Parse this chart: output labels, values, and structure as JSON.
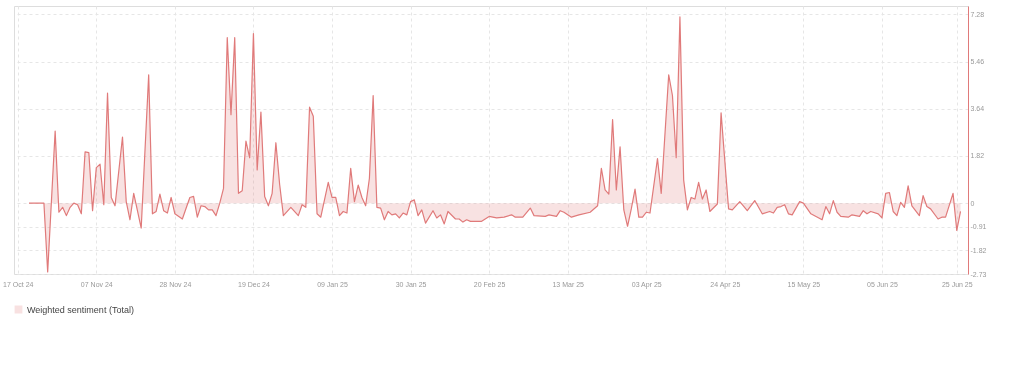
{
  "chart_data": {
    "type": "area",
    "x": [
      "2024-10-20",
      "2024-10-24",
      "2024-10-25",
      "2024-10-27",
      "2024-10-28",
      "2024-10-29",
      "2024-10-30",
      "2024-10-31",
      "2024-11-01",
      "2024-11-02",
      "2024-11-03",
      "2024-11-04",
      "2024-11-05",
      "2024-11-06",
      "2024-11-07",
      "2024-11-08",
      "2024-11-09",
      "2024-11-10",
      "2024-11-11",
      "2024-11-12",
      "2024-11-14",
      "2024-11-15",
      "2024-11-16",
      "2024-11-17",
      "2024-11-19",
      "2024-11-21",
      "2024-11-22",
      "2024-11-23",
      "2024-11-24",
      "2024-11-25",
      "2024-11-26",
      "2024-11-27",
      "2024-11-28",
      "2024-11-30",
      "2024-12-02",
      "2024-12-03",
      "2024-12-04",
      "2024-12-05",
      "2024-12-06",
      "2024-12-07",
      "2024-12-08",
      "2024-12-09",
      "2024-12-10",
      "2024-12-11",
      "2024-12-12",
      "2024-12-13",
      "2024-12-14",
      "2024-12-15",
      "2024-12-16",
      "2024-12-17",
      "2024-12-18",
      "2024-12-19",
      "2024-12-20",
      "2024-12-21",
      "2024-12-22",
      "2024-12-23",
      "2024-12-24",
      "2024-12-25",
      "2024-12-26",
      "2024-12-27",
      "2024-12-29",
      "2024-12-31",
      "2025-01-01",
      "2025-01-02",
      "2025-01-03",
      "2025-01-04",
      "2025-01-05",
      "2025-01-06",
      "2025-01-08",
      "2025-01-09",
      "2025-01-10",
      "2025-01-11",
      "2025-01-12",
      "2025-01-13",
      "2025-01-14",
      "2025-01-15",
      "2025-01-16",
      "2025-01-17",
      "2025-01-18",
      "2025-01-19",
      "2025-01-20",
      "2025-01-21",
      "2025-01-22",
      "2025-01-23",
      "2025-01-24",
      "2025-01-25",
      "2025-01-26",
      "2025-01-27",
      "2025-01-28",
      "2025-01-29",
      "2025-01-30",
      "2025-01-31",
      "2025-02-01",
      "2025-02-02",
      "2025-02-03",
      "2025-02-05",
      "2025-02-06",
      "2025-02-07",
      "2025-02-08",
      "2025-02-09",
      "2025-02-11",
      "2025-02-12",
      "2025-02-13",
      "2025-02-14",
      "2025-02-15",
      "2025-02-18",
      "2025-02-20",
      "2025-02-22",
      "2025-02-24",
      "2025-02-26",
      "2025-02-27",
      "2025-03-01",
      "2025-03-03",
      "2025-03-04",
      "2025-03-07",
      "2025-03-08",
      "2025-03-10",
      "2025-03-11",
      "2025-03-12",
      "2025-03-14",
      "2025-03-16",
      "2025-03-19",
      "2025-03-21",
      "2025-03-22",
      "2025-03-23",
      "2025-03-24",
      "2025-03-25",
      "2025-03-26",
      "2025-03-27",
      "2025-03-28",
      "2025-03-29",
      "2025-03-30",
      "2025-03-31",
      "2025-04-01",
      "2025-04-02",
      "2025-04-03",
      "2025-04-04",
      "2025-04-06",
      "2025-04-07",
      "2025-04-09",
      "2025-04-10",
      "2025-04-11",
      "2025-04-12",
      "2025-04-13",
      "2025-04-14",
      "2025-04-15",
      "2025-04-16",
      "2025-04-17",
      "2025-04-18",
      "2025-04-19",
      "2025-04-20",
      "2025-04-22",
      "2025-04-23",
      "2025-04-25",
      "2025-04-26",
      "2025-04-28",
      "2025-04-30",
      "2025-05-02",
      "2025-05-04",
      "2025-05-06",
      "2025-05-07",
      "2025-05-08",
      "2025-05-09",
      "2025-05-10",
      "2025-05-11",
      "2025-05-12",
      "2025-05-14",
      "2025-05-15",
      "2025-05-17",
      "2025-05-20",
      "2025-05-21",
      "2025-05-22",
      "2025-05-23",
      "2025-05-24",
      "2025-05-25",
      "2025-05-27",
      "2025-05-28",
      "2025-05-30",
      "2025-05-31",
      "2025-06-01",
      "2025-06-02",
      "2025-06-04",
      "2025-06-05",
      "2025-06-06",
      "2025-06-07",
      "2025-06-08",
      "2025-06-09",
      "2025-06-10",
      "2025-06-11",
      "2025-06-12",
      "2025-06-13",
      "2025-06-15",
      "2025-06-16",
      "2025-06-17",
      "2025-06-18",
      "2025-06-20",
      "2025-06-21",
      "2025-06-22",
      "2025-06-24",
      "2025-06-25",
      "2025-06-26"
    ],
    "series": [
      {
        "name": "Weighted sentiment (Total)",
        "color": "#e07a7a",
        "values": [
          0,
          0,
          -2.65,
          2.78,
          -0.35,
          -0.16,
          -0.48,
          -0.16,
          0,
          -0.06,
          -0.41,
          1.98,
          1.95,
          -0.29,
          1.37,
          1.5,
          -0.06,
          4.24,
          0.22,
          -0.1,
          2.55,
          0.06,
          -0.64,
          0.38,
          -0.96,
          4.95,
          -0.41,
          -0.32,
          0.35,
          -0.29,
          -0.38,
          0.22,
          -0.41,
          -0.61,
          0.22,
          0.26,
          -0.54,
          -0.1,
          -0.13,
          -0.26,
          -0.26,
          -0.48,
          0,
          0.57,
          6.38,
          3.41,
          6.38,
          0.38,
          0.48,
          2.39,
          1.75,
          6.54,
          1.28,
          3.51,
          0.26,
          -0.1,
          0.38,
          2.33,
          0.73,
          -0.48,
          -0.16,
          -0.48,
          -0.06,
          -0.16,
          3.7,
          3.35,
          -0.41,
          -0.54,
          0.8,
          0.22,
          0.22,
          -0.48,
          -0.32,
          -0.38,
          1.34,
          0.06,
          0.7,
          0.22,
          -0.1,
          0.96,
          4.15,
          -0.16,
          -0.19,
          -0.64,
          -0.32,
          -0.45,
          -0.41,
          -0.57,
          -0.38,
          -0.45,
          0.06,
          0.13,
          -0.48,
          -0.26,
          -0.77,
          -0.29,
          -0.57,
          -0.45,
          -0.8,
          -0.32,
          -0.61,
          -0.61,
          -0.73,
          -0.64,
          -0.7,
          -0.7,
          -0.51,
          -0.57,
          -0.54,
          -0.45,
          -0.54,
          -0.54,
          -0.19,
          -0.48,
          -0.51,
          -0.45,
          -0.51,
          -0.29,
          -0.35,
          -0.54,
          -0.45,
          -0.35,
          -0.1,
          1.34,
          0.51,
          0.35,
          3.22,
          0.51,
          2.17,
          -0.26,
          -0.89,
          -0.22,
          0.54,
          -0.54,
          -0.54,
          -0.35,
          -0.38,
          1.72,
          0.38,
          4.95,
          4.15,
          1.75,
          7.18,
          0.89,
          -0.26,
          0.22,
          0.16,
          0.8,
          0.16,
          0.51,
          -0.32,
          -0.03,
          3.48,
          -0.22,
          -0.26,
          0.06,
          -0.29,
          0.1,
          -0.41,
          -0.32,
          -0.38,
          -0.16,
          -0.13,
          -0.06,
          -0.41,
          -0.45,
          0.06,
          0,
          -0.41,
          -0.64,
          -0.13,
          -0.41,
          0.1,
          -0.35,
          -0.51,
          -0.54,
          -0.45,
          -0.51,
          -0.29,
          -0.41,
          -0.32,
          -0.41,
          -0.57,
          0.38,
          0.41,
          -0.32,
          -0.48,
          0.03,
          -0.16,
          0.67,
          -0.1,
          -0.48,
          0.29,
          -0.13,
          -0.22,
          -0.61,
          -0.54,
          -0.54,
          0.38,
          -1.05,
          -0.32
        ]
      }
    ],
    "xlim": [
      "2024-10-16",
      "2025-06-28"
    ],
    "xticks": [
      {
        "value": "2024-10-17",
        "label": "17 Oct 24"
      },
      {
        "value": "2024-11-07",
        "label": "07 Nov 24"
      },
      {
        "value": "2024-11-28",
        "label": "28 Nov 24"
      },
      {
        "value": "2024-12-19",
        "label": "19 Dec 24"
      },
      {
        "value": "2025-01-09",
        "label": "09 Jan 25"
      },
      {
        "value": "2025-01-30",
        "label": "30 Jan 25"
      },
      {
        "value": "2025-02-20",
        "label": "20 Feb 25"
      },
      {
        "value": "2025-03-13",
        "label": "13 Mar 25"
      },
      {
        "value": "2025-04-03",
        "label": "03 Apr 25"
      },
      {
        "value": "2025-04-24",
        "label": "24 Apr 25"
      },
      {
        "value": "2025-05-15",
        "label": "15 May 25"
      },
      {
        "value": "2025-06-05",
        "label": "05 Jun 25"
      },
      {
        "value": "2025-06-25",
        "label": "25 Jun 25"
      }
    ],
    "ylim": [
      -2.73,
      7.6
    ],
    "yticks": [
      -2.73,
      -1.82,
      -0.91,
      0,
      1.82,
      3.64,
      5.46,
      7.28
    ],
    "grid": true,
    "legend": "bottom",
    "marker": "none",
    "line_style": "solid"
  }
}
